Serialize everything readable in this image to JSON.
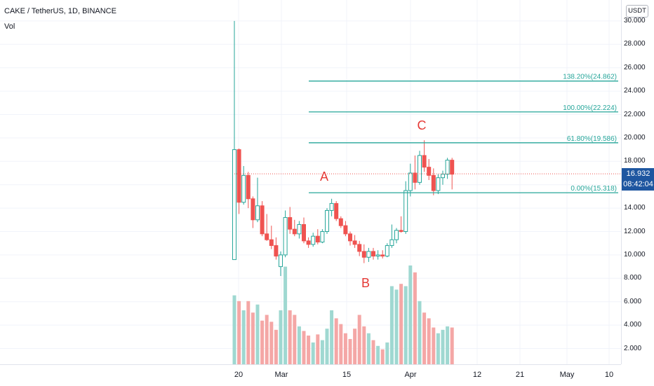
{
  "header": {
    "symbol_line": "CAKE / TetherUS, 1D, BINANCE",
    "volume_label": "Vol",
    "currency_button": "USDT"
  },
  "price_tag": {
    "price": "16.932",
    "countdown": "08:42:04"
  },
  "colors": {
    "up": "#26a69a",
    "down": "#ef5350",
    "vol_up": "#9fd8d1",
    "vol_down": "#f4a7a6",
    "fib": "#26a69a",
    "wave": "#e53935",
    "price_tag": "#1e56a0"
  },
  "chart_data": {
    "type": "candlestick",
    "ylim": [
      1,
      30
    ],
    "y_ticks": [
      "30.000",
      "28.000",
      "26.000",
      "24.000",
      "22.000",
      "20.000",
      "18.000",
      "16.000",
      "14.000",
      "12.000",
      "10.000",
      "8.000",
      "6.000",
      "4.000",
      "2.000"
    ],
    "x_ticks": [
      "20",
      "Mar",
      "15",
      "Apr",
      "12",
      "21",
      "May",
      "10"
    ],
    "fib_levels": [
      {
        "label": "138.20%(24.862)",
        "value": 24.862
      },
      {
        "label": "100.00%(22.224)",
        "value": 22.224
      },
      {
        "label": "61.80%(19.586)",
        "value": 19.586
      },
      {
        "label": "0.00%(15.318)",
        "value": 15.318
      }
    ],
    "wave_labels": [
      {
        "text": "A"
      },
      {
        "text": "B"
      },
      {
        "text": "C"
      }
    ],
    "candles": [
      {
        "o": 9.6,
        "h": 30.0,
        "l": 9.6,
        "c": 19.0,
        "v": 6.0
      },
      {
        "o": 19.0,
        "h": 19.1,
        "l": 13.5,
        "c": 14.5,
        "v": 5.5
      },
      {
        "o": 14.5,
        "h": 17.6,
        "l": 14.3,
        "c": 16.8,
        "v": 4.7
      },
      {
        "o": 16.8,
        "h": 17.1,
        "l": 14.0,
        "c": 14.8,
        "v": 5.5
      },
      {
        "o": 14.8,
        "h": 15.0,
        "l": 12.3,
        "c": 13.0,
        "v": 4.5
      },
      {
        "o": 13.0,
        "h": 16.6,
        "l": 12.8,
        "c": 14.2,
        "v": 5.2
      },
      {
        "o": 14.2,
        "h": 14.6,
        "l": 11.6,
        "c": 11.8,
        "v": 3.8
      },
      {
        "o": 11.8,
        "h": 13.5,
        "l": 11.2,
        "c": 11.3,
        "v": 4.3
      },
      {
        "o": 11.3,
        "h": 12.5,
        "l": 10.5,
        "c": 10.8,
        "v": 3.7
      },
      {
        "o": 10.8,
        "h": 11.5,
        "l": 9.6,
        "c": 9.9,
        "v": 3.0
      },
      {
        "o": 9.0,
        "h": 10.3,
        "l": 8.2,
        "c": 10.0,
        "v": 4.7
      },
      {
        "o": 10.0,
        "h": 13.8,
        "l": 9.8,
        "c": 13.2,
        "v": 8.5
      },
      {
        "o": 13.2,
        "h": 14.1,
        "l": 11.8,
        "c": 12.2,
        "v": 4.7
      },
      {
        "o": 12.2,
        "h": 13.0,
        "l": 11.6,
        "c": 11.8,
        "v": 4.3
      },
      {
        "o": 11.8,
        "h": 12.9,
        "l": 11.4,
        "c": 12.6,
        "v": 3.3
      },
      {
        "o": 12.6,
        "h": 13.2,
        "l": 11.0,
        "c": 11.2,
        "v": 2.9
      },
      {
        "o": 11.2,
        "h": 11.5,
        "l": 10.6,
        "c": 10.9,
        "v": 2.5
      },
      {
        "o": 10.9,
        "h": 11.9,
        "l": 10.7,
        "c": 11.6,
        "v": 1.9
      },
      {
        "o": 11.6,
        "h": 12.2,
        "l": 10.9,
        "c": 11.1,
        "v": 2.6
      },
      {
        "o": 11.1,
        "h": 12.2,
        "l": 11.0,
        "c": 12.0,
        "v": 2.1
      },
      {
        "o": 12.0,
        "h": 14.0,
        "l": 11.8,
        "c": 13.8,
        "v": 3.1
      },
      {
        "o": 13.8,
        "h": 14.8,
        "l": 13.3,
        "c": 14.4,
        "v": 4.7
      },
      {
        "o": 14.4,
        "h": 14.6,
        "l": 12.9,
        "c": 13.1,
        "v": 4.0
      },
      {
        "o": 13.1,
        "h": 13.3,
        "l": 12.3,
        "c": 12.5,
        "v": 3.5
      },
      {
        "o": 12.5,
        "h": 12.9,
        "l": 11.6,
        "c": 11.8,
        "v": 2.7
      },
      {
        "o": 11.8,
        "h": 12.0,
        "l": 10.8,
        "c": 11.2,
        "v": 2.2
      },
      {
        "o": 11.2,
        "h": 11.7,
        "l": 10.6,
        "c": 10.9,
        "v": 3.1
      },
      {
        "o": 10.9,
        "h": 11.2,
        "l": 9.9,
        "c": 10.3,
        "v": 4.3
      },
      {
        "o": 10.3,
        "h": 10.9,
        "l": 9.3,
        "c": 9.8,
        "v": 3.3
      },
      {
        "o": 9.8,
        "h": 10.6,
        "l": 9.4,
        "c": 10.3,
        "v": 2.7
      },
      {
        "o": 10.3,
        "h": 10.6,
        "l": 9.6,
        "c": 9.9,
        "v": 2.1
      },
      {
        "o": 9.9,
        "h": 10.4,
        "l": 9.6,
        "c": 10.0,
        "v": 1.6
      },
      {
        "o": 10.0,
        "h": 10.4,
        "l": 9.7,
        "c": 9.9,
        "v": 1.3
      },
      {
        "o": 9.9,
        "h": 11.0,
        "l": 9.8,
        "c": 10.8,
        "v": 1.9
      },
      {
        "o": 10.8,
        "h": 12.6,
        "l": 10.6,
        "c": 11.3,
        "v": 6.8
      },
      {
        "o": 11.3,
        "h": 12.3,
        "l": 11.0,
        "c": 12.1,
        "v": 6.5
      },
      {
        "o": 12.1,
        "h": 13.3,
        "l": 11.9,
        "c": 12.0,
        "v": 7.0
      },
      {
        "o": 12.0,
        "h": 16.3,
        "l": 11.8,
        "c": 15.5,
        "v": 6.8
      },
      {
        "o": 15.5,
        "h": 17.8,
        "l": 15.0,
        "c": 17.0,
        "v": 8.6
      },
      {
        "o": 17.0,
        "h": 18.5,
        "l": 15.6,
        "c": 16.2,
        "v": 8.0
      },
      {
        "o": 16.2,
        "h": 18.9,
        "l": 16.0,
        "c": 18.5,
        "v": 5.5
      },
      {
        "o": 18.5,
        "h": 19.8,
        "l": 17.1,
        "c": 17.5,
        "v": 4.5
      },
      {
        "o": 17.5,
        "h": 18.2,
        "l": 16.4,
        "c": 16.8,
        "v": 4.0
      },
      {
        "o": 16.8,
        "h": 17.4,
        "l": 15.1,
        "c": 15.5,
        "v": 3.2
      },
      {
        "o": 15.5,
        "h": 16.9,
        "l": 15.2,
        "c": 16.6,
        "v": 2.7
      },
      {
        "o": 16.6,
        "h": 17.2,
        "l": 16.0,
        "c": 16.9,
        "v": 3.0
      },
      {
        "o": 16.9,
        "h": 18.3,
        "l": 16.5,
        "c": 18.1,
        "v": 3.3
      },
      {
        "o": 18.1,
        "h": 18.3,
        "l": 15.6,
        "c": 16.9,
        "v": 3.2
      }
    ]
  }
}
